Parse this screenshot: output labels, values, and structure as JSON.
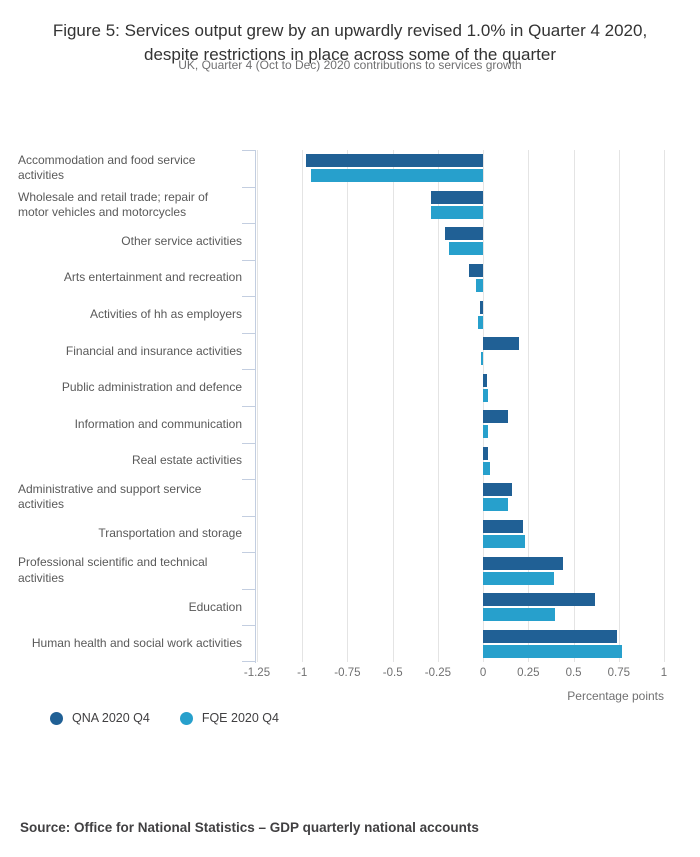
{
  "header": {
    "title": "Figure 5: Services output grew by an upwardly revised 1.0% in Quarter 4 2020, despite restrictions in place across some of the quarter",
    "subtitle": "UK, Quarter 4 (Oct to Dec) 2020 contributions to services growth"
  },
  "footer": {
    "source": "Source: Office for National Statistics – GDP quarterly national accounts"
  },
  "chart_data": {
    "type": "bar",
    "orientation": "horizontal",
    "title": "Figure 5: Services output grew by an upwardly revised 1.0% in Quarter 4 2020, despite restrictions in place across some of the quarter",
    "subtitle": "UK, Quarter 4 (Oct to Dec) 2020 contributions to services growth",
    "xlabel": "Percentage points",
    "xlim": [
      -1.25,
      1
    ],
    "xticks": [
      -1.25,
      -1,
      -0.75,
      -0.5,
      -0.25,
      0,
      0.25,
      0.5,
      0.75,
      1
    ],
    "xtick_labels": [
      "-1.25",
      "-1",
      "-0.75",
      "-0.5",
      "-0.25",
      "0",
      "0.25",
      "0.5",
      "0.75",
      "1"
    ],
    "grid": true,
    "legend_position": "bottom-left",
    "categories": [
      "Accommodation and food service activities",
      "Wholesale and retail trade; repair of motor vehicles and motorcycles",
      "Other service activities",
      "Arts entertainment and recreation",
      "Activities of hh as employers",
      "Financial and insurance activities",
      "Public administration and defence",
      "Information and communication",
      "Real estate activities",
      "Administrative and support service activities",
      "Transportation and storage",
      "Professional scientific and technical activities",
      "Education",
      "Human health and social work activities"
    ],
    "series": [
      {
        "name": "QNA 2020 Q4",
        "color": "#206095",
        "values": [
          -0.98,
          -0.29,
          -0.21,
          -0.08,
          -0.02,
          0.2,
          0.02,
          0.14,
          0.03,
          0.16,
          0.22,
          0.44,
          0.62,
          0.74
        ]
      },
      {
        "name": "FQE 2020 Q4",
        "color": "#27a0cc",
        "values": [
          -0.95,
          -0.29,
          -0.19,
          -0.04,
          -0.03,
          -0.01,
          0.03,
          0.03,
          0.04,
          0.14,
          0.23,
          0.39,
          0.4,
          0.77
        ]
      }
    ]
  }
}
